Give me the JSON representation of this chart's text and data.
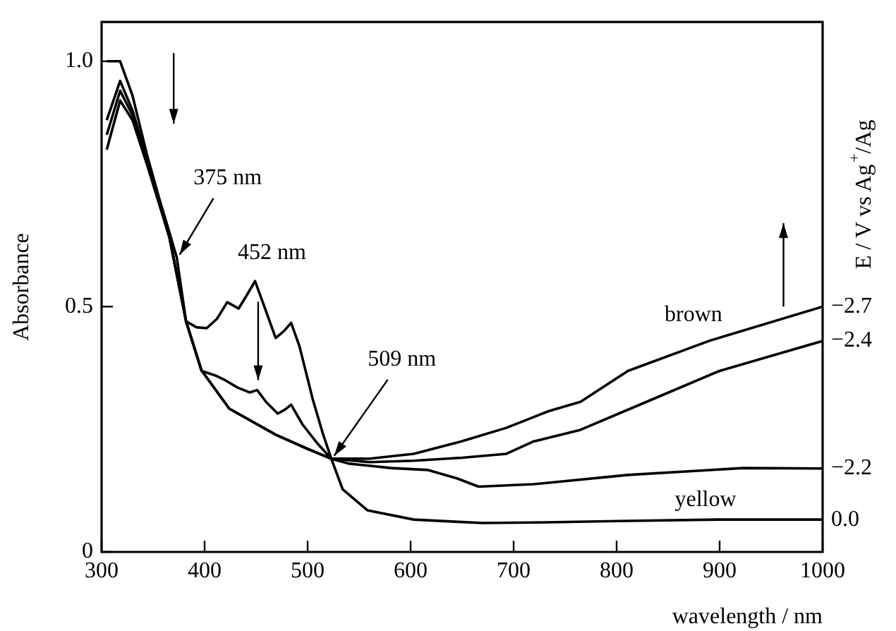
{
  "chart_data": {
    "type": "line",
    "xlabel": "wavelength / nm",
    "ylabel": "Absorbance",
    "y2label": "E / V vs Ag$^{+}$/Ag",
    "xlim": [
      300,
      1000
    ],
    "xticks": [
      300,
      400,
      500,
      600,
      700,
      800,
      900,
      1000
    ],
    "ylim": [
      0,
      1.08
    ],
    "yticks": [
      0,
      0.5,
      {
        "value": 1,
        "label": "1.0"
      }
    ],
    "grid": false,
    "legend": false,
    "marker": "none",
    "line_style": "solid",
    "series": [
      {
        "name": "−2.7",
        "color": "#000000",
        "x": [
          305,
          318,
          330,
          344,
          366,
          382,
          397,
          424,
          469,
          500,
          523,
          559,
          603,
          649,
          693,
          734,
          765,
          811,
          829,
          891,
          1000
        ],
        "values": [
          0.82,
          0.92,
          0.88,
          0.79,
          0.64,
          0.47,
          0.37,
          0.292,
          0.239,
          0.21,
          0.19,
          0.19,
          0.2,
          0.225,
          0.253,
          0.287,
          0.306,
          0.369,
          0.383,
          0.431,
          0.5
        ]
      },
      {
        "name": "−2.4",
        "color": "#000000",
        "x": [
          305,
          318,
          330,
          344,
          366,
          382,
          397,
          424,
          469,
          500,
          523,
          560,
          603,
          650,
          693,
          719,
          765,
          819,
          900,
          1000
        ],
        "values": [
          0.85,
          0.94,
          0.89,
          0.8,
          0.64,
          0.47,
          0.37,
          0.292,
          0.239,
          0.21,
          0.19,
          0.183,
          0.186,
          0.192,
          0.2,
          0.225,
          0.249,
          0.297,
          0.369,
          0.43
        ]
      },
      {
        "name": "−2.2",
        "color": "#000000",
        "x": [
          305,
          318,
          330,
          344,
          366,
          382,
          397,
          410,
          420,
          432,
          444,
          451,
          460,
          471,
          478,
          484,
          495,
          510,
          523,
          540,
          581,
          617,
          645,
          666,
          719,
          811,
          923,
          1000
        ],
        "values": [
          0.88,
          0.96,
          0.9,
          0.8,
          0.64,
          0.47,
          0.369,
          0.36,
          0.35,
          0.335,
          0.325,
          0.33,
          0.305,
          0.282,
          0.29,
          0.3,
          0.26,
          0.22,
          0.19,
          0.18,
          0.171,
          0.167,
          0.15,
          0.133,
          0.138,
          0.157,
          0.171,
          0.17
        ]
      },
      {
        "name": "0.0",
        "color": "#000000",
        "x": [
          305,
          318,
          330,
          344,
          356,
          366,
          373,
          382,
          392,
          402,
          412,
          422,
          433,
          440,
          449,
          458,
          469,
          477,
          484,
          492,
          505,
          515,
          523,
          534,
          558,
          603,
          640,
          670,
          720,
          800,
          900,
          1000
        ],
        "values": [
          1.0,
          1.0,
          0.93,
          0.81,
          0.72,
          0.65,
          0.6,
          0.47,
          0.458,
          0.456,
          0.475,
          0.509,
          0.496,
          0.52,
          0.552,
          0.5,
          0.436,
          0.45,
          0.467,
          0.42,
          0.311,
          0.24,
          0.19,
          0.128,
          0.085,
          0.066,
          0.062,
          0.059,
          0.06,
          0.063,
          0.066,
          0.066
        ]
      }
    ],
    "annotations": [
      {
        "text": "375 nm",
        "x": 373,
        "y": 0.6
      },
      {
        "text": "452 nm",
        "x": 449,
        "y": 0.552
      },
      {
        "text": "509 nm",
        "x": 523,
        "y": 0.19
      },
      {
        "text": "brown",
        "x": 891,
        "y": 0.431
      },
      {
        "text": "yellow",
        "x": 900,
        "y": 0.066
      }
    ]
  }
}
